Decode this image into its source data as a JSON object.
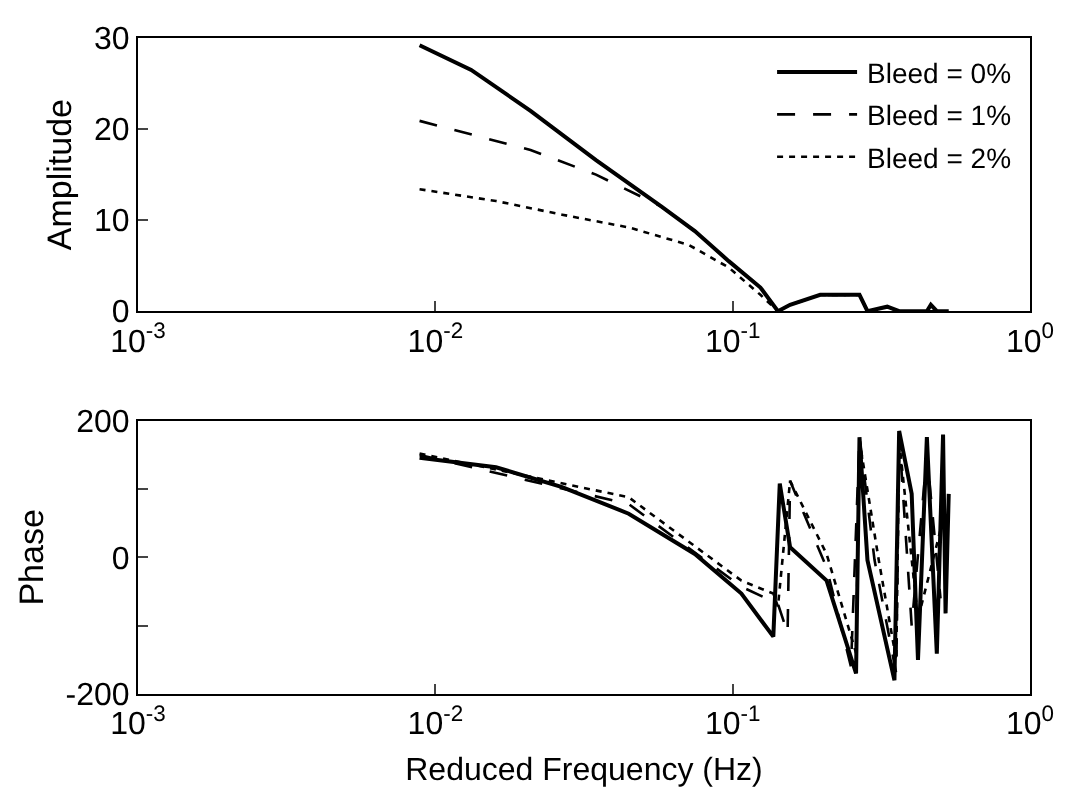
{
  "chart_data": [
    {
      "type": "line",
      "ylabel": "Amplitude",
      "xlim": [
        0.001,
        1
      ],
      "log": "x",
      "xticks": [
        {
          "value": 0.001,
          "label": "10$^{-3}$"
        },
        {
          "value": 0.01,
          "label": "10$^{-2}$"
        },
        {
          "value": 0.1,
          "label": "10$^{-1}$"
        },
        {
          "value": 1,
          "label": "10$^{0}$"
        }
      ],
      "ylim": [
        0,
        30
      ],
      "yticks": [
        0,
        10,
        20,
        30
      ],
      "legend": "top right",
      "marker": "none",
      "series": [
        {
          "name": "Bleed = 0%",
          "color": "#000000",
          "line_style": "solid",
          "x": [
            0.00885,
            0.0132,
            0.0209,
            0.0347,
            0.0575,
            0.0746,
            0.097,
            0.124,
            0.142,
            0.156,
            0.197,
            0.267,
            0.284,
            0.331,
            0.363,
            0.45,
            0.464,
            0.486,
            0.533
          ],
          "values": [
            29.2,
            26.5,
            22,
            16.6,
            11.5,
            8.8,
            5.5,
            2.6,
            0,
            0.7,
            1.8,
            1.8,
            0,
            0.5,
            0,
            0,
            0.7,
            0,
            0
          ]
        },
        {
          "name": "Bleed = 1%",
          "color": "#000000",
          "line_style": "dashed",
          "x": [
            0.00885,
            0.0209,
            0.0347,
            0.0575,
            0.0746,
            0.097,
            0.124,
            0.142,
            0.156,
            0.197,
            0.267,
            0.284,
            0.331,
            0.363,
            0.45,
            0.533
          ],
          "values": [
            20.9,
            17.7,
            15.0,
            11.5,
            8.8,
            5.5,
            2.6,
            0,
            0.7,
            1.8,
            1.8,
            0,
            0.5,
            0,
            0,
            0
          ]
        },
        {
          "name": "Bleed = 2%",
          "color": "#000000",
          "line_style": "dotted",
          "x": [
            0.00885,
            0.016,
            0.0267,
            0.0447,
            0.071,
            0.097,
            0.124,
            0.142,
            0.156,
            0.197,
            0.267,
            0.284,
            0.331,
            0.363,
            0.45,
            0.533
          ],
          "values": [
            13.4,
            12.1,
            10.6,
            9.2,
            7.3,
            4.8,
            1.8,
            0,
            0.7,
            1.8,
            1.8,
            0,
            0.5,
            0,
            0,
            0
          ]
        }
      ]
    },
    {
      "type": "line",
      "ylabel": "Phase",
      "xlabel": "Reduced Frequency (Hz)",
      "xlim": [
        0.001,
        1
      ],
      "log": "x",
      "xticks": [
        {
          "value": 0.001,
          "label": "10$^{-3}$"
        },
        {
          "value": 0.01,
          "label": "10$^{-2}$"
        },
        {
          "value": 0.1,
          "label": "10$^{-1}$"
        },
        {
          "value": 1,
          "label": "10$^{0}$"
        }
      ],
      "ylim": [
        -200,
        200
      ],
      "yticks": [
        -200,
        0,
        200,
        {
          "value": -100,
          "label": null
        },
        {
          "value": 100,
          "label": null
        }
      ],
      "marker": "none",
      "series": [
        {
          "color": "#000000",
          "line_style": "solid",
          "x": [
            0.00885,
            0.016,
            0.0267,
            0.0447,
            0.0746,
            0.107,
            0.137,
            0.144,
            0.156,
            0.207,
            0.26,
            0.267,
            0.284,
            0.35,
            0.363,
            0.4,
            0.42,
            0.45,
            0.486,
            0.51,
            0.52,
            0.533
          ],
          "values": [
            146,
            132,
            103,
            64,
            5,
            -53,
            -116,
            108,
            15,
            -34,
            -170,
            176,
            -4,
            -180,
            185,
            93,
            -150,
            176,
            -141,
            180,
            -82,
            93
          ]
        },
        {
          "color": "#000000",
          "line_style": "dashed",
          "x": [
            0.00885,
            0.0447,
            0.107,
            0.142,
            0.153,
            0.156,
            0.207,
            0.25,
            0.267,
            0.3,
            0.355,
            0.363,
            0.4,
            0.45,
            0.5
          ],
          "values": [
            150,
            78,
            -43,
            -68,
            -111,
            112,
            -15,
            -160,
            176,
            -4,
            -170,
            180,
            -100,
            150,
            -60
          ]
        },
        {
          "color": "#000000",
          "line_style": "dotted",
          "x": [
            0.00885,
            0.0447,
            0.107,
            0.137,
            0.142,
            0.156,
            0.207,
            0.26,
            0.267,
            0.31,
            0.355,
            0.363,
            0.42,
            0.5
          ],
          "values": [
            152,
            88,
            -34,
            -53,
            -72,
            112,
            5,
            -140,
            171,
            -4,
            -150,
            171,
            -90,
            40
          ]
        }
      ]
    }
  ]
}
